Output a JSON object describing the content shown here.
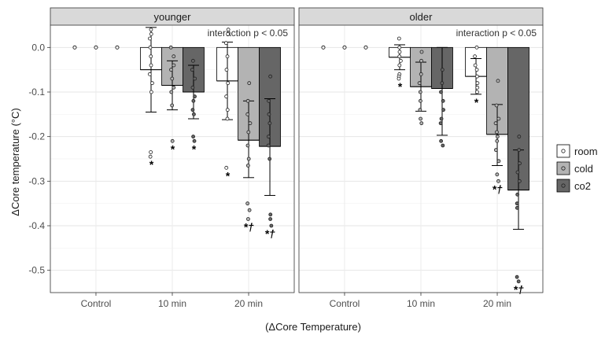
{
  "chart_data": {
    "type": "bar",
    "ylabel": "ΔCore temperature (°C)",
    "xlabel": "(ΔCore Temperature)",
    "ylim": [
      -0.55,
      0.05
    ],
    "yticks": [
      0.0,
      -0.1,
      -0.2,
      -0.3,
      -0.4,
      -0.5
    ],
    "ytick_labels": [
      "0.0",
      "-0.1",
      "-0.2",
      "-0.3",
      "-0.4",
      "-0.5"
    ],
    "categories": [
      "Control",
      "10 min",
      "20 min"
    ],
    "legend": {
      "position": "right",
      "entries": [
        {
          "name": "room",
          "color": "#ffffff"
        },
        {
          "name": "cold",
          "color": "#b3b3b3"
        },
        {
          "name": "co2",
          "color": "#666666"
        }
      ]
    },
    "grid": true,
    "panels": [
      {
        "name": "younger",
        "annotation": "interaction p < 0.05",
        "series": [
          {
            "name": "room",
            "values": [
              0.0,
              -0.05,
              -0.075
            ],
            "err_low": [
              0.0,
              -0.145,
              -0.162
            ],
            "err_high": [
              0.0,
              0.045,
              0.012
            ],
            "points": [
              [
                0.0,
                0.0,
                0.0
              ],
              [
                0.04,
                0.03,
                0.02,
                0.0,
                -0.02,
                -0.04,
                -0.06,
                -0.08,
                -0.1,
                -0.235,
                -0.245
              ],
              [
                0.04,
                0.03,
                0.01,
                -0.02,
                -0.05,
                -0.08,
                -0.11,
                -0.14,
                -0.16,
                -0.27
              ]
            ],
            "sig": [
              "",
              "*",
              "*"
            ]
          },
          {
            "name": "cold",
            "values": [
              0.0,
              -0.085,
              -0.208
            ],
            "err_low": [
              0.0,
              -0.14,
              -0.292
            ],
            "err_high": [
              0.0,
              -0.03,
              -0.12
            ],
            "points": [
              [
                0.0,
                0.0,
                0.0
              ],
              [
                0.0,
                -0.02,
                -0.04,
                -0.05,
                -0.07,
                -0.09,
                -0.1,
                -0.13,
                -0.21
              ],
              [
                -0.08,
                -0.12,
                -0.15,
                -0.17,
                -0.19,
                -0.22,
                -0.25,
                -0.265,
                -0.35,
                -0.365,
                -0.385
              ]
            ],
            "sig": [
              "",
              "*",
              "*†"
            ]
          },
          {
            "name": "co2",
            "values": [
              0.0,
              -0.1,
              -0.222
            ],
            "err_low": [
              0.0,
              -0.16,
              -0.332
            ],
            "err_high": [
              0.0,
              -0.04,
              -0.115
            ],
            "points": [
              [
                0.0,
                0.0,
                0.0
              ],
              [
                -0.03,
                -0.05,
                -0.07,
                -0.09,
                -0.11,
                -0.12,
                -0.14,
                -0.15,
                -0.2,
                -0.21
              ],
              [
                -0.065,
                -0.12,
                -0.15,
                -0.17,
                -0.2,
                -0.22,
                -0.25,
                -0.375,
                -0.385,
                -0.4
              ]
            ],
            "sig": [
              "",
              "*",
              "*†"
            ]
          }
        ]
      },
      {
        "name": "older",
        "annotation": "interaction p < 0.05",
        "series": [
          {
            "name": "room",
            "values": [
              0.0,
              -0.022,
              -0.065
            ],
            "err_low": [
              0.0,
              -0.05,
              -0.105
            ],
            "err_high": [
              0.0,
              0.006,
              -0.025
            ],
            "points": [
              [
                0.0,
                0.0,
                0.0
              ],
              [
                0.02,
                0.0,
                -0.01,
                -0.02,
                -0.03,
                -0.04,
                -0.06,
                -0.065,
                -0.07
              ],
              [
                0.0,
                -0.02,
                -0.04,
                -0.05,
                -0.065,
                -0.08,
                -0.09,
                -0.1
              ]
            ],
            "sig": [
              "",
              "*",
              "*"
            ]
          },
          {
            "name": "cold",
            "values": [
              0.0,
              -0.088,
              -0.195
            ],
            "err_low": [
              0.0,
              -0.143,
              -0.265
            ],
            "err_high": [
              0.0,
              -0.033,
              -0.128
            ],
            "points": [
              [
                0.0,
                0.0,
                0.0
              ],
              [
                -0.01,
                -0.03,
                -0.06,
                -0.08,
                -0.1,
                -0.12,
                -0.14,
                -0.16,
                -0.17
              ],
              [
                -0.075,
                -0.13,
                -0.16,
                -0.17,
                -0.19,
                -0.2,
                -0.21,
                -0.23,
                -0.255,
                -0.285,
                -0.3
              ]
            ],
            "sig": [
              "",
              "",
              "*†"
            ]
          },
          {
            "name": "co2",
            "values": [
              0.0,
              -0.092,
              -0.32
            ],
            "err_low": [
              0.0,
              -0.197,
              -0.408
            ],
            "err_high": [
              0.0,
              0.0,
              -0.23
            ],
            "points": [
              [
                0.0,
                0.0,
                0.0
              ],
              [
                -0.05,
                -0.08,
                -0.1,
                -0.12,
                -0.14,
                -0.16,
                -0.17,
                -0.21,
                -0.22
              ],
              [
                -0.2,
                -0.23,
                -0.26,
                -0.28,
                -0.3,
                -0.33,
                -0.35,
                -0.36,
                -0.515,
                -0.525
              ]
            ],
            "sig": [
              "",
              "",
              "*†"
            ]
          }
        ]
      }
    ]
  }
}
